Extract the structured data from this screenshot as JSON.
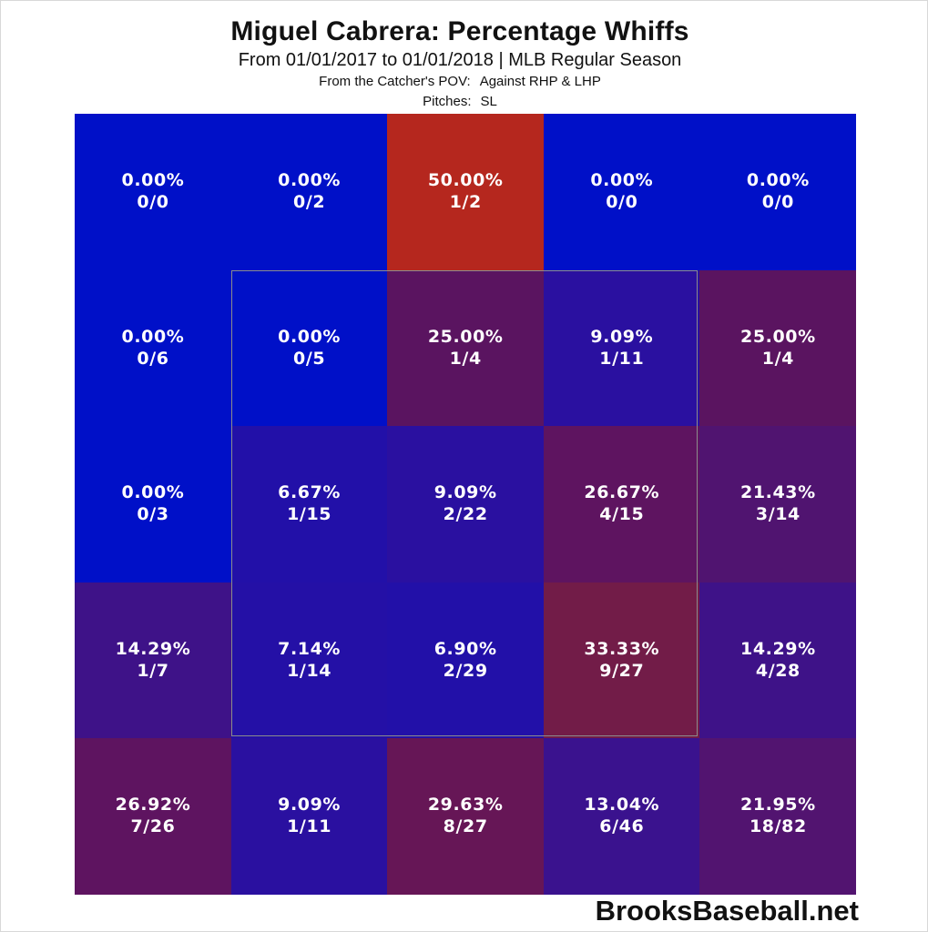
{
  "title": "Miguel Cabrera: Percentage Whiffs",
  "subtitle": "From 01/01/2017 to 01/01/2018 | MLB Regular Season",
  "pov": "From the Catcher's POV:",
  "against": "Against RHP & LHP",
  "pitches_label": "Pitches:",
  "pitches_value": "SL",
  "brand": "BrooksBaseball.net",
  "chart_data": {
    "type": "heatmap",
    "title": "Miguel Cabrera: Percentage Whiffs",
    "rows": 5,
    "cols": 5,
    "cells": [
      [
        {
          "pct": "0.00%",
          "frac": "0/0",
          "color": "#0010c8"
        },
        {
          "pct": "0.00%",
          "frac": "0/2",
          "color": "#0010c8"
        },
        {
          "pct": "50.00%",
          "frac": "1/2",
          "color": "#b5271e"
        },
        {
          "pct": "0.00%",
          "frac": "0/0",
          "color": "#0010c8"
        },
        {
          "pct": "0.00%",
          "frac": "0/0",
          "color": "#0010c8"
        }
      ],
      [
        {
          "pct": "0.00%",
          "frac": "0/6",
          "color": "#0010c8"
        },
        {
          "pct": "0.00%",
          "frac": "0/5",
          "color": "#0010c8"
        },
        {
          "pct": "25.00%",
          "frac": "1/4",
          "color": "#5a1460"
        },
        {
          "pct": "9.09%",
          "frac": "1/11",
          "color": "#2a10a0"
        },
        {
          "pct": "25.00%",
          "frac": "1/4",
          "color": "#5a1460"
        }
      ],
      [
        {
          "pct": "0.00%",
          "frac": "0/3",
          "color": "#0010c8"
        },
        {
          "pct": "6.67%",
          "frac": "1/15",
          "color": "#2210a8"
        },
        {
          "pct": "9.09%",
          "frac": "2/22",
          "color": "#2a10a0"
        },
        {
          "pct": "26.67%",
          "frac": "4/15",
          "color": "#5e1460"
        },
        {
          "pct": "21.43%",
          "frac": "3/14",
          "color": "#501470"
        }
      ],
      [
        {
          "pct": "14.29%",
          "frac": "1/7",
          "color": "#3e1288"
        },
        {
          "pct": "7.14%",
          "frac": "1/14",
          "color": "#2410a6"
        },
        {
          "pct": "6.90%",
          "frac": "2/29",
          "color": "#2210a8"
        },
        {
          "pct": "33.33%",
          "frac": "9/27",
          "color": "#721c48"
        },
        {
          "pct": "14.29%",
          "frac": "4/28",
          "color": "#3e1288"
        }
      ],
      [
        {
          "pct": "26.92%",
          "frac": "7/26",
          "color": "#5e1460"
        },
        {
          "pct": "9.09%",
          "frac": "1/11",
          "color": "#2a10a0"
        },
        {
          "pct": "29.63%",
          "frac": "8/27",
          "color": "#661656"
        },
        {
          "pct": "13.04%",
          "frac": "6/46",
          "color": "#3a128e"
        },
        {
          "pct": "21.95%",
          "frac": "18/82",
          "color": "#521470"
        }
      ]
    ]
  }
}
